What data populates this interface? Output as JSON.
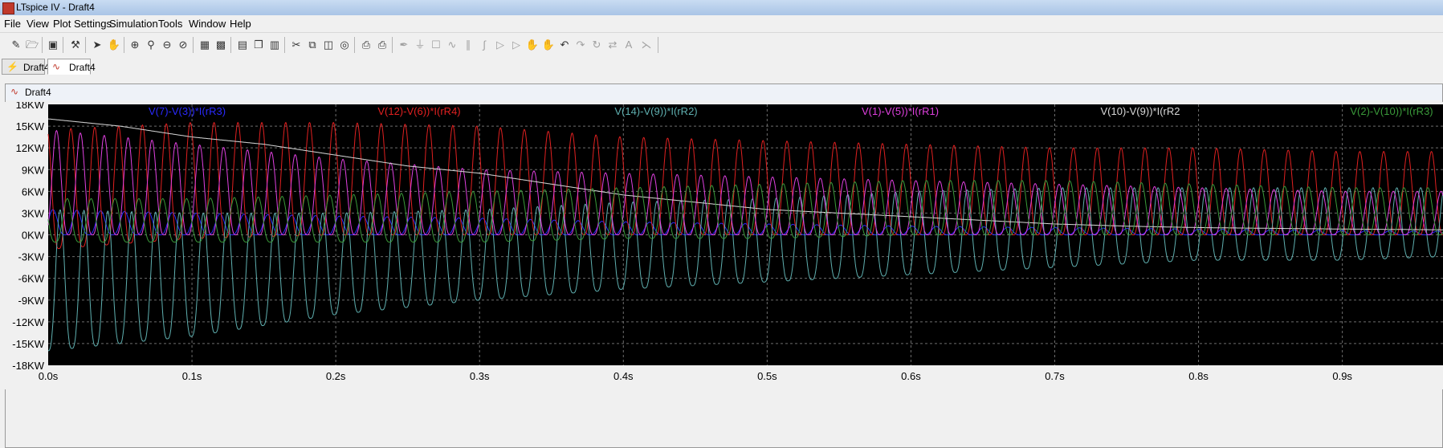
{
  "window": {
    "title": "LTspice IV - Draft4"
  },
  "menu": [
    "File",
    "View",
    "Plot Settings",
    "Simulation",
    "Tools",
    "Window",
    "Help"
  ],
  "tabs": [
    {
      "label": "Draft4",
      "kind": "schematic"
    },
    {
      "label": "Draft4",
      "kind": "waveform",
      "active": true
    }
  ],
  "document": {
    "title": "Draft4"
  },
  "toolbar_icons": [
    "new-schematic",
    "open",
    "save",
    "control-panel",
    "run",
    "halt",
    "zoom-area",
    "zoom-in",
    "zoom-out",
    "zoom-cancel",
    "autorange",
    "zoom-fit",
    "tile-horizontal",
    "cascade",
    "tile-vertical",
    "cut",
    "copy",
    "paste",
    "find",
    "print-setup",
    "print",
    "wire",
    "ground",
    "label-net",
    "resistor",
    "capacitor",
    "inductor",
    "diode",
    "component",
    "move",
    "drag",
    "undo",
    "redo",
    "rotate",
    "mirror",
    "text",
    "spice-directive"
  ],
  "chart_data": {
    "type": "line",
    "title": "",
    "xlabel": "",
    "ylabel": "",
    "xlim": [
      0.0,
      0.97
    ],
    "ylim": [
      -18000,
      18000
    ],
    "grid": true,
    "legend": "top",
    "x_ticks": [
      "0.0s",
      "0.1s",
      "0.2s",
      "0.3s",
      "0.4s",
      "0.5s",
      "0.6s",
      "0.7s",
      "0.8s",
      "0.9s"
    ],
    "y_ticks": [
      "18KW",
      "15KW",
      "12KW",
      "9KW",
      "6KW",
      "3KW",
      "0KW",
      "-3KW",
      "-6KW",
      "-9KW",
      "-12KW",
      "-15KW",
      "-18KW"
    ],
    "series": [
      {
        "name": "V(7)-V(3))*I(rR3)",
        "color": "#2a2aff",
        "t": [
          0.0,
          0.1,
          0.2,
          0.3,
          0.4,
          0.5,
          0.6,
          0.7,
          0.8,
          0.9,
          0.97
        ],
        "peak": [
          3500,
          3000,
          2600,
          2300,
          1800,
          1500,
          1200,
          1000,
          800,
          600,
          500
        ],
        "trough": [
          0,
          0,
          0,
          0,
          0,
          0,
          0,
          0,
          0,
          0,
          0
        ]
      },
      {
        "name": "V(12)-V(6))*I(rR4)",
        "color": "#e02020",
        "t": [
          0.0,
          0.1,
          0.2,
          0.3,
          0.4,
          0.5,
          0.6,
          0.7,
          0.8,
          0.9,
          0.97
        ],
        "peak": [
          14500,
          15500,
          15500,
          15000,
          13500,
          13000,
          12500,
          12000,
          12000,
          11500,
          11500
        ],
        "trough": [
          -2000,
          -500,
          0,
          0,
          0,
          0,
          0,
          0,
          0,
          0,
          0
        ]
      },
      {
        "name": "V(14)-V(9))*I(rR2)",
        "color": "#5fb0b0",
        "t": [
          0.0,
          0.1,
          0.2,
          0.3,
          0.4,
          0.5,
          0.6,
          0.7,
          0.8,
          0.9,
          0.97
        ],
        "peak": [
          3500,
          3000,
          3000,
          3500,
          4500,
          5000,
          6000,
          6500,
          6500,
          6500,
          6500
        ],
        "trough": [
          -16000,
          -14000,
          -11000,
          -9000,
          -7500,
          -6500,
          -5500,
          -4500,
          -3500,
          -3500,
          -3000
        ]
      },
      {
        "name": "V(1)-V(5))*I(rR1)",
        "color": "#e040e0",
        "t": [
          0.0,
          0.1,
          0.2,
          0.3,
          0.4,
          0.5,
          0.6,
          0.7,
          0.8,
          0.9,
          0.97
        ],
        "peak": [
          14500,
          12500,
          10500,
          9000,
          8500,
          8000,
          7500,
          7000,
          6500,
          6000,
          6000
        ],
        "trough": [
          0,
          0,
          0,
          0,
          0,
          0,
          0,
          0,
          0,
          0,
          0
        ]
      },
      {
        "name": "V(10)-V(9))*I(rR2",
        "color": "#d8d8d8",
        "t": [
          0.0,
          0.05,
          0.1,
          0.15,
          0.2,
          0.25,
          0.3,
          0.35,
          0.4,
          0.45,
          0.5,
          0.55,
          0.6,
          0.65,
          0.7,
          0.75,
          0.8,
          0.85,
          0.9,
          0.97
        ],
        "peak": [
          16000,
          15000,
          13500,
          12500,
          11000,
          9500,
          8500,
          7000,
          5500,
          4500,
          3500,
          3000,
          2500,
          2000,
          1500,
          1200,
          1000,
          900,
          800,
          700
        ],
        "trough": [
          16000,
          15000,
          13500,
          12500,
          11000,
          9500,
          8500,
          7000,
          5500,
          4500,
          3500,
          3000,
          2500,
          2000,
          1500,
          1200,
          1000,
          900,
          800,
          700
        ]
      },
      {
        "name": "V(2)-V(10))*I(rR3)",
        "color": "#3a9a3a",
        "t": [
          0.0,
          0.1,
          0.2,
          0.3,
          0.4,
          0.5,
          0.6,
          0.7,
          0.8,
          0.9,
          0.97
        ],
        "peak": [
          5000,
          5000,
          5500,
          6000,
          6500,
          7000,
          7500,
          7500,
          7000,
          6500,
          6500
        ],
        "trough": [
          -1000,
          -1000,
          -1000,
          -1000,
          -500,
          -500,
          0,
          0,
          0,
          0,
          0
        ]
      }
    ]
  }
}
